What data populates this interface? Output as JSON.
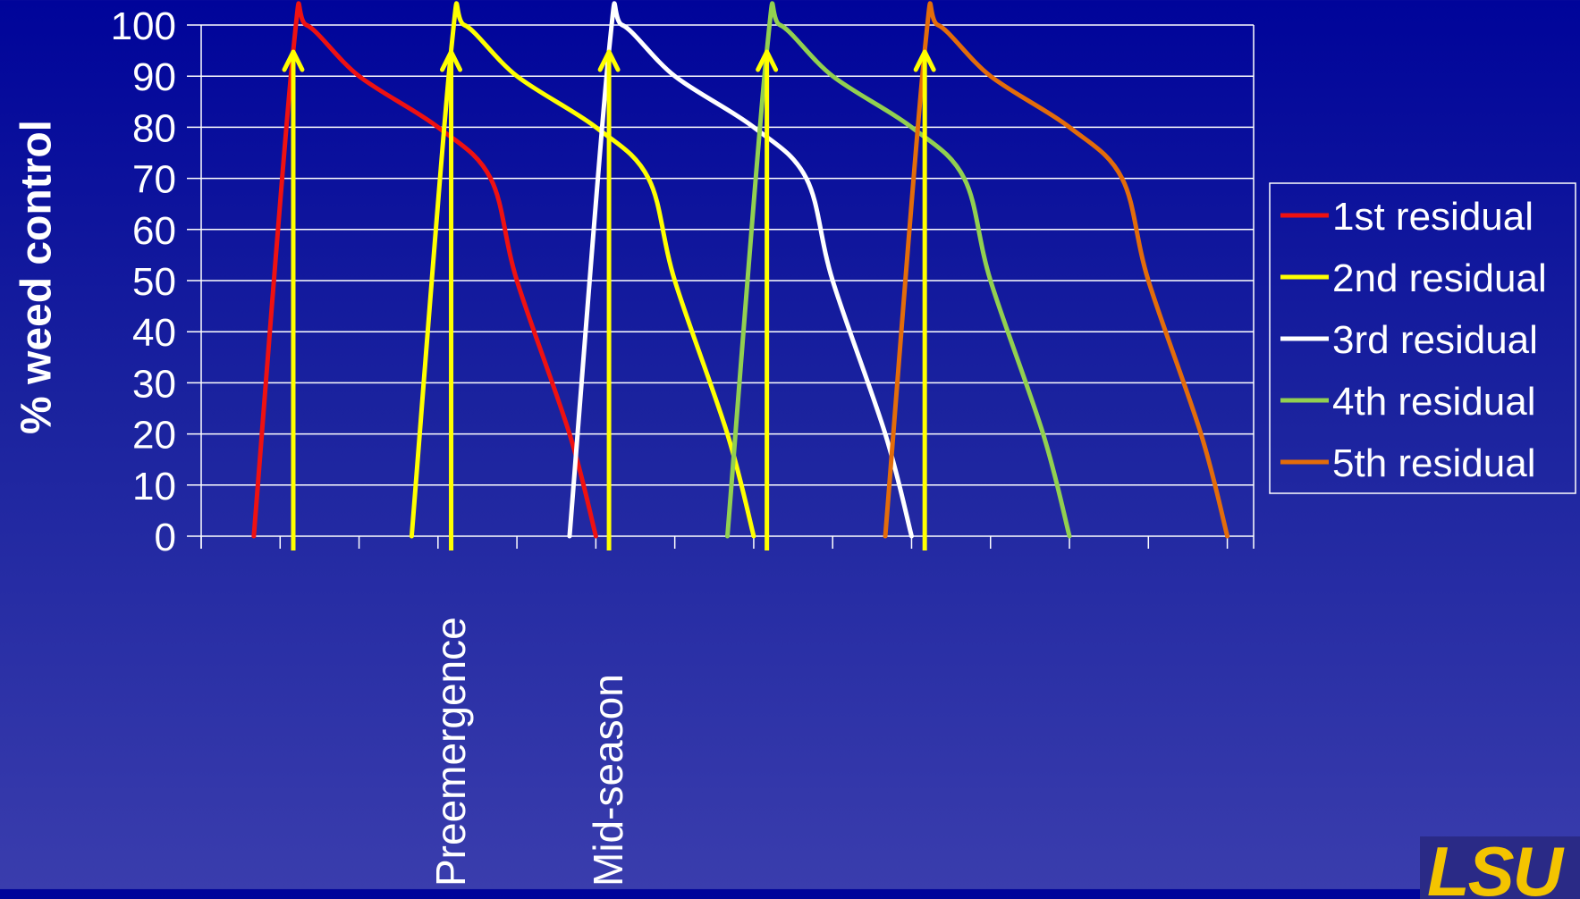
{
  "chart_data": {
    "type": "line",
    "title": "",
    "xlabel": "",
    "ylabel": "% weed control",
    "ylim": [
      0,
      100
    ],
    "yticks": [
      0,
      10,
      20,
      30,
      40,
      50,
      60,
      70,
      80,
      90,
      100
    ],
    "grid": true,
    "legend_position": "right",
    "category_labels": [
      {
        "text": "Preemergence",
        "x": 9.5
      },
      {
        "text": "Mid-season",
        "x": 15.5
      }
    ],
    "application_arrows": [
      {
        "x": 3.5
      },
      {
        "x": 9.5
      },
      {
        "x": 15.5
      },
      {
        "x": 21.5
      },
      {
        "x": 27.5
      }
    ],
    "series": [
      {
        "name": "1st residual",
        "color": "#ee1111",
        "x": [
          2,
          3.5,
          4,
          6,
          9,
          11,
          12,
          14,
          15
        ],
        "y": [
          0,
          95,
          100,
          90,
          80,
          70,
          50,
          20,
          0
        ]
      },
      {
        "name": "2nd residual",
        "color": "#ffff00",
        "x": [
          8,
          9.5,
          10,
          12,
          15,
          17,
          18,
          20,
          21
        ],
        "y": [
          0,
          95,
          100,
          90,
          80,
          70,
          50,
          20,
          0
        ]
      },
      {
        "name": "3rd residual",
        "color": "#ffffff",
        "x": [
          14,
          15.5,
          16,
          18,
          21,
          23,
          24,
          26,
          27
        ],
        "y": [
          0,
          95,
          100,
          90,
          80,
          70,
          50,
          20,
          0
        ]
      },
      {
        "name": "4th residual",
        "color": "#92d050",
        "x": [
          20,
          21.5,
          22,
          24,
          27,
          29,
          30,
          32,
          33
        ],
        "y": [
          0,
          95,
          100,
          90,
          80,
          70,
          50,
          20,
          0
        ]
      },
      {
        "name": "5th residual",
        "color": "#e36c0a",
        "x": [
          26,
          27.5,
          28,
          30,
          33,
          35,
          36,
          38,
          39
        ],
        "y": [
          0,
          95,
          100,
          90,
          80,
          70,
          50,
          20,
          0
        ]
      }
    ]
  },
  "logo_text": "LSU"
}
